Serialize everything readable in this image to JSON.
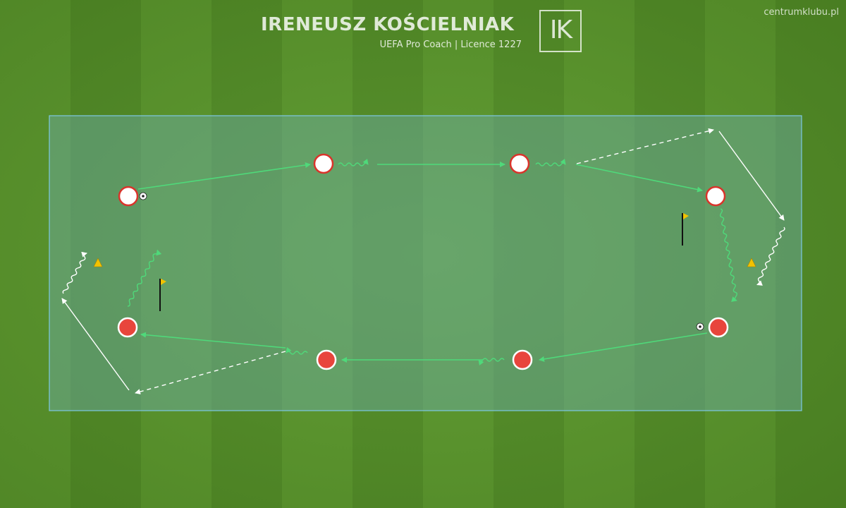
{
  "header": {
    "coach_name": "IRENEUSZ KOŚCIELNIAK",
    "subtitle": "UEFA Pro Coach   |   Licence 1227",
    "logo_text": "IK",
    "website": "centrumklubu.pl"
  },
  "colors": {
    "area_fill": "#6fb0b4",
    "area_border": "#7ec8e3",
    "pass_line": "#4fd97a",
    "run_line": "#ffffff",
    "player_white": "#ffffff",
    "player_red": "#e8453c",
    "player_ring": "#d9342b",
    "cone": "#f2c200",
    "flag": "#f2c200"
  },
  "players": [
    {
      "id": "w1",
      "team": "white"
    },
    {
      "id": "w2",
      "team": "white"
    },
    {
      "id": "w3",
      "team": "white"
    },
    {
      "id": "w4",
      "team": "white"
    },
    {
      "id": "r1",
      "team": "red"
    },
    {
      "id": "r2",
      "team": "red"
    },
    {
      "id": "r3",
      "team": "red"
    },
    {
      "id": "r4",
      "team": "red"
    }
  ],
  "balls": [
    "ball-left",
    "ball-right"
  ],
  "cones": [
    "cone-left",
    "cone-right"
  ],
  "flags": [
    "flag-left",
    "flag-right"
  ]
}
